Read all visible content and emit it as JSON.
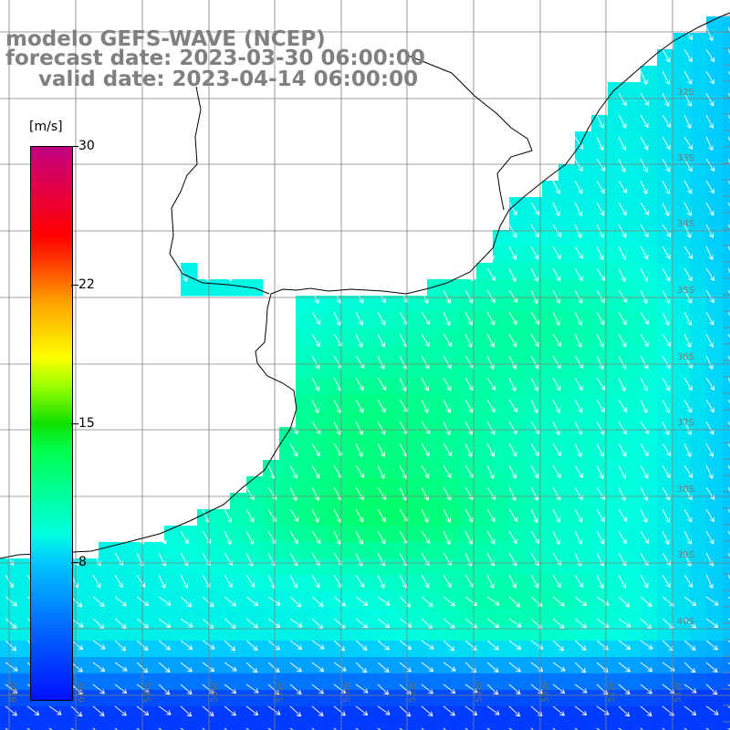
{
  "title": {
    "line1": "modelo GEFS-WAVE (NCEP)",
    "line2": "forecast date: 2023-03-30 06:00:00",
    "line3": "valid date: 2023-04-14 06:00:00"
  },
  "colorbar": {
    "unit": "[m/s]",
    "ticks": [
      "30",
      "22",
      "15",
      "8"
    ],
    "min": 0,
    "max": 30,
    "colors": [
      "#0010ff",
      "#0060ff",
      "#00c8ff",
      "#00ffe0",
      "#00ff50",
      "#10e000",
      "#a0ff00",
      "#ffff00",
      "#ffa000",
      "#ff3000",
      "#ff0000",
      "#e0004a",
      "#c00080"
    ]
  },
  "axes": {
    "lat_labels": [
      "32S",
      "33S",
      "34S",
      "35S",
      "36S",
      "37S",
      "38S",
      "39S",
      "40S"
    ],
    "lon_labels": [
      "61W",
      "60W",
      "59W",
      "58W",
      "57W",
      "56W",
      "55W",
      "54W",
      "53W",
      "52W",
      "51W"
    ]
  },
  "map": {
    "region": "Rio de la Plata / South Atlantic",
    "wind_direction": "north-northwest to south-southeast",
    "grid": true
  },
  "colors": {
    "land": "#ffffff",
    "coastline": "#000000",
    "grid": "#808080",
    "arrows": "#ffffff",
    "title_text": "#808080"
  }
}
